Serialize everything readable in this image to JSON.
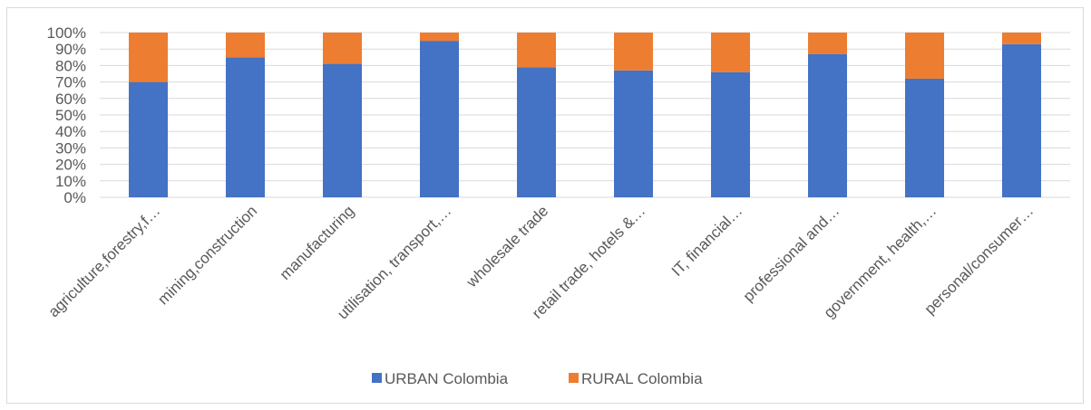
{
  "chart_data": {
    "type": "bar",
    "stacked": true,
    "title": "",
    "xlabel": "",
    "ylabel": "",
    "ylim": [
      0,
      100
    ],
    "y_ticks": [
      "0%",
      "10%",
      "20%",
      "30%",
      "40%",
      "50%",
      "60%",
      "70%",
      "80%",
      "90%",
      "100%"
    ],
    "grid": true,
    "legend_position": "bottom",
    "categories": [
      "agriculture,forestry,f…",
      "mining,construction",
      "manufacturing",
      "utilisation, transport,…",
      "wholesale trade",
      "retail trade, hotels &…",
      "IT, financial…",
      "professional and…",
      "government, health,…",
      "personal/consumer…"
    ],
    "series": [
      {
        "name": "URBAN Colombia",
        "color": "#4472C4",
        "values": [
          70,
          85,
          81,
          95,
          79,
          77,
          76,
          87,
          72,
          93
        ]
      },
      {
        "name": "RURAL Colombia",
        "color": "#ED7D31",
        "values": [
          30,
          15,
          19,
          5,
          21,
          23,
          24,
          13,
          28,
          7
        ]
      }
    ]
  }
}
